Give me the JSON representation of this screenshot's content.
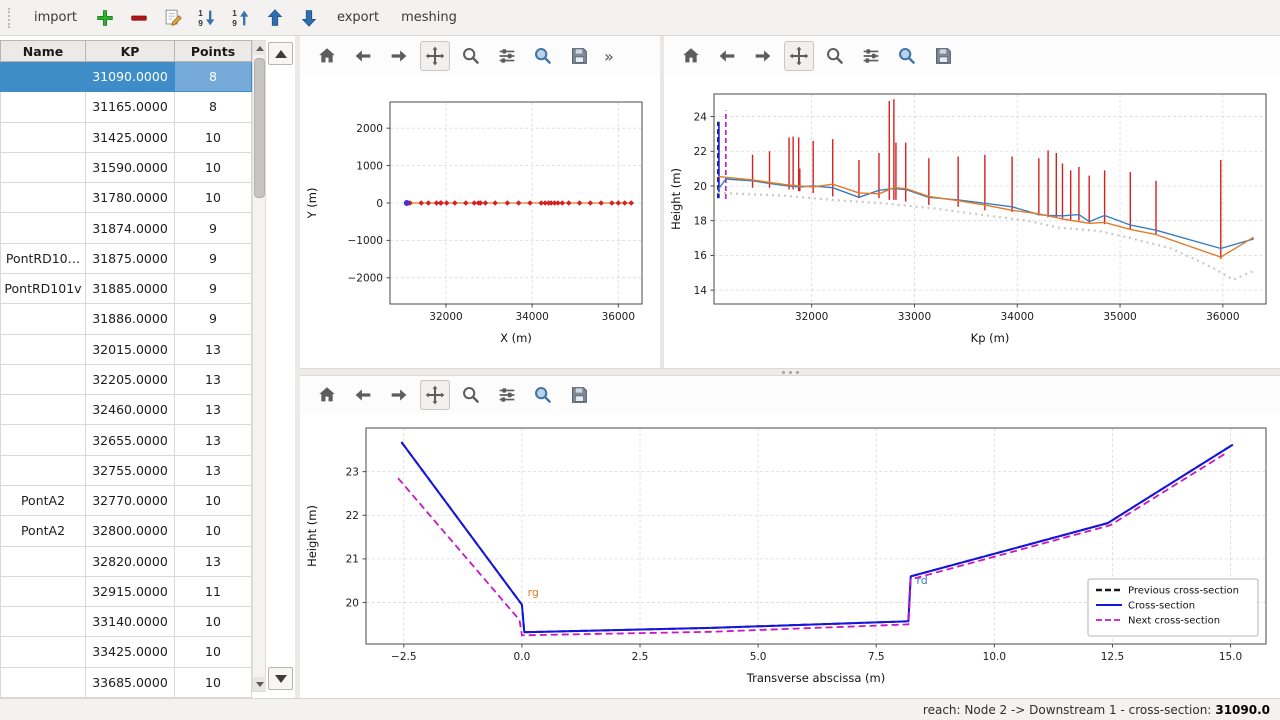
{
  "app": {
    "statusbar_prefix": "reach: Node 2 -> Downstream 1 - cross-section:",
    "statusbar_value": "31090.0"
  },
  "menubar": {
    "items": [
      {
        "type": "grip"
      },
      {
        "type": "menu",
        "label": "import",
        "name": "menu-import"
      },
      {
        "type": "icon",
        "name": "add-icon"
      },
      {
        "type": "icon",
        "name": "remove-icon"
      },
      {
        "type": "icon",
        "name": "edit-icon"
      },
      {
        "type": "icon",
        "name": "sort-descending-icon"
      },
      {
        "type": "icon",
        "name": "sort-ascending-icon"
      },
      {
        "type": "icon",
        "name": "move-up-icon"
      },
      {
        "type": "icon",
        "name": "move-down-icon"
      },
      {
        "type": "menu",
        "label": "export",
        "name": "menu-export"
      },
      {
        "type": "menu",
        "label": "meshing",
        "name": "menu-meshing"
      }
    ]
  },
  "table": {
    "columns": [
      "Name",
      "KP",
      "Points"
    ],
    "selected_row": 0,
    "rows": [
      {
        "name": "",
        "kp": "31090.0000",
        "points": "8"
      },
      {
        "name": "",
        "kp": "31165.0000",
        "points": "8"
      },
      {
        "name": "",
        "kp": "31425.0000",
        "points": "10"
      },
      {
        "name": "",
        "kp": "31590.0000",
        "points": "10"
      },
      {
        "name": "",
        "kp": "31780.0000",
        "points": "10"
      },
      {
        "name": "",
        "kp": "31874.0000",
        "points": "9"
      },
      {
        "name": "PontRD10…",
        "kp": "31875.0000",
        "points": "9"
      },
      {
        "name": "PontRD101v",
        "kp": "31885.0000",
        "points": "9"
      },
      {
        "name": "",
        "kp": "31886.0000",
        "points": "9"
      },
      {
        "name": "",
        "kp": "32015.0000",
        "points": "13"
      },
      {
        "name": "",
        "kp": "32205.0000",
        "points": "13"
      },
      {
        "name": "",
        "kp": "32460.0000",
        "points": "13"
      },
      {
        "name": "",
        "kp": "32655.0000",
        "points": "13"
      },
      {
        "name": "",
        "kp": "32755.0000",
        "points": "13"
      },
      {
        "name": "PontA2",
        "kp": "32770.0000",
        "points": "10"
      },
      {
        "name": "PontA2",
        "kp": "32800.0000",
        "points": "10"
      },
      {
        "name": "",
        "kp": "32820.0000",
        "points": "13"
      },
      {
        "name": "",
        "kp": "32915.0000",
        "points": "11"
      },
      {
        "name": "",
        "kp": "33140.0000",
        "points": "10"
      },
      {
        "name": "",
        "kp": "33425.0000",
        "points": "10"
      },
      {
        "name": "",
        "kp": "33685.0000",
        "points": "10"
      }
    ]
  },
  "toolbars": {
    "icons": [
      "home",
      "back",
      "forward",
      "pan",
      "zoom",
      "subplots",
      "customize",
      "save"
    ],
    "overflow": "»"
  },
  "chart_data": [
    {
      "id": "plan",
      "type": "scatter",
      "title": "",
      "xlabel": "X (m)",
      "ylabel": "Y (m)",
      "xlim": [
        30700,
        36550
      ],
      "ylim": [
        -2700,
        2700
      ],
      "xticks": [
        32000,
        34000,
        36000
      ],
      "xticklabels": [
        "32000",
        "34000",
        "36000"
      ],
      "yticks": [
        -2000,
        -1000,
        0,
        1000,
        2000
      ],
      "yticklabels": [
        "−2000",
        "−1000",
        "0",
        "1000",
        "2000"
      ],
      "grid": true,
      "legend_position": "none",
      "margins": {
        "l": 90,
        "r": 18,
        "t": 26,
        "b": 64
      },
      "series": [
        {
          "name": "river-axis",
          "type": "line",
          "color": "#e07b28",
          "width": 1.2,
          "points": [
            [
              31090,
              0
            ],
            [
              36300,
              0
            ]
          ]
        },
        {
          "name": "cross-sections",
          "type": "markers",
          "shape": "diamond",
          "color": "#d62020",
          "size": 2.8,
          "y": 0,
          "x": [
            31090,
            31165,
            31425,
            31590,
            31780,
            31874,
            31885,
            32015,
            32205,
            32460,
            32655,
            32755,
            32800,
            32915,
            33140,
            33425,
            33685,
            33950,
            34210,
            34300,
            34380,
            34440,
            34520,
            34600,
            34700,
            34850,
            35100,
            35350,
            35600,
            35850,
            36000,
            36150,
            36300
          ]
        },
        {
          "name": "current-section-marker",
          "type": "markers",
          "shape": "circle",
          "color": "#4433cc",
          "size": 3,
          "y": 0,
          "x": [
            31090
          ]
        }
      ]
    },
    {
      "id": "profile",
      "type": "line",
      "title": "",
      "xlabel": "Kp (m)",
      "ylabel": "Height (m)",
      "xlim": [
        31050,
        36420
      ],
      "ylim": [
        13.2,
        25.3
      ],
      "xticks": [
        32000,
        33000,
        34000,
        35000,
        36000
      ],
      "xticklabels": [
        "32000",
        "33000",
        "34000",
        "35000",
        "36000"
      ],
      "yticks": [
        14,
        16,
        18,
        20,
        22,
        24
      ],
      "yticklabels": [
        "14",
        "16",
        "18",
        "20",
        "22",
        "24"
      ],
      "grid": true,
      "legend_position": "none",
      "margins": {
        "l": 50,
        "r": 14,
        "t": 18,
        "b": 64
      },
      "series": [
        {
          "name": "section-extents",
          "type": "vlines",
          "color": "#d62020",
          "width": 1.4,
          "segs": [
            [
              31425,
              19.9,
              21.8
            ],
            [
              31590,
              19.9,
              22.0
            ],
            [
              31780,
              19.8,
              22.8
            ],
            [
              31820,
              19.8,
              22.85
            ],
            [
              31874,
              19.7,
              22.8
            ],
            [
              31885,
              19.7,
              21.0
            ],
            [
              32015,
              19.6,
              22.6
            ],
            [
              32205,
              19.4,
              22.7
            ],
            [
              32460,
              19.3,
              21.5
            ],
            [
              32655,
              19.3,
              21.9
            ],
            [
              32755,
              19.2,
              24.9
            ],
            [
              32800,
              19.2,
              25.0
            ],
            [
              32820,
              19.2,
              22.5
            ],
            [
              32915,
              19.1,
              22.5
            ],
            [
              33140,
              18.9,
              21.6
            ],
            [
              33425,
              18.8,
              21.7
            ],
            [
              33685,
              18.6,
              21.8
            ],
            [
              33950,
              18.5,
              21.7
            ],
            [
              34210,
              18.3,
              21.6
            ],
            [
              34300,
              18.2,
              22.05
            ],
            [
              34380,
              18.2,
              21.9
            ],
            [
              34440,
              18.1,
              21.3
            ],
            [
              34520,
              18.0,
              20.9
            ],
            [
              34600,
              18.0,
              21.1
            ],
            [
              34700,
              17.9,
              20.6
            ],
            [
              34850,
              17.8,
              20.9
            ],
            [
              35100,
              17.5,
              20.8
            ],
            [
              35350,
              17.2,
              20.3
            ],
            [
              35980,
              15.8,
              21.5
            ]
          ]
        },
        {
          "name": "previous-section-marker",
          "type": "vlines",
          "color": "#1a1a1a",
          "dash": "5 3",
          "width": 1.6,
          "segs": [
            [
              31088,
              19.3,
              23.7
            ]
          ]
        },
        {
          "name": "current-section-marker",
          "type": "vlines",
          "color": "#1322dd",
          "width": 1.6,
          "segs": [
            [
              31098,
              19.3,
              23.7
            ]
          ]
        },
        {
          "name": "next-section-marker",
          "type": "vlines",
          "color": "#c717c7",
          "dash": "5 3",
          "width": 1.6,
          "segs": [
            [
              31165,
              19.25,
              24.35
            ]
          ]
        },
        {
          "name": "thalweg-dotted",
          "type": "line",
          "color": "#c9c9c9",
          "dash": "2 4",
          "width": 2.2,
          "points": [
            [
              31090,
              19.6
            ],
            [
              31700,
              19.45
            ],
            [
              32200,
              19.2
            ],
            [
              32700,
              19.0
            ],
            [
              33200,
              18.7
            ],
            [
              33700,
              18.3
            ],
            [
              34100,
              18.0
            ],
            [
              34400,
              17.6
            ],
            [
              34800,
              17.4
            ],
            [
              35100,
              17.0
            ],
            [
              35500,
              16.4
            ],
            [
              35900,
              15.3
            ],
            [
              36100,
              14.6
            ],
            [
              36300,
              15.1
            ]
          ]
        },
        {
          "name": "left-bank",
          "type": "line",
          "color": "#3b7bbf",
          "width": 1.4,
          "points": [
            [
              31090,
              19.8
            ],
            [
              31165,
              20.4
            ],
            [
              31425,
              20.3
            ],
            [
              31590,
              20.15
            ],
            [
              31780,
              20.0
            ],
            [
              31880,
              19.95
            ],
            [
              32015,
              20.0
            ],
            [
              32205,
              19.9
            ],
            [
              32460,
              19.35
            ],
            [
              32655,
              19.75
            ],
            [
              32800,
              19.85
            ],
            [
              32915,
              19.8
            ],
            [
              33140,
              19.35
            ],
            [
              33425,
              19.2
            ],
            [
              33685,
              19.0
            ],
            [
              33950,
              18.8
            ],
            [
              34210,
              18.35
            ],
            [
              34300,
              18.3
            ],
            [
              34440,
              18.28
            ],
            [
              34600,
              18.35
            ],
            [
              34700,
              17.95
            ],
            [
              34850,
              18.3
            ],
            [
              35100,
              17.75
            ],
            [
              35350,
              17.45
            ],
            [
              35980,
              16.4
            ],
            [
              36300,
              16.95
            ]
          ]
        },
        {
          "name": "right-bank",
          "type": "line",
          "color": "#e07b28",
          "width": 1.4,
          "points": [
            [
              31090,
              20.55
            ],
            [
              31165,
              20.5
            ],
            [
              31425,
              20.35
            ],
            [
              31590,
              20.2
            ],
            [
              31780,
              20.05
            ],
            [
              32015,
              19.95
            ],
            [
              32205,
              20.1
            ],
            [
              32460,
              19.6
            ],
            [
              32655,
              19.55
            ],
            [
              32800,
              19.9
            ],
            [
              32915,
              19.85
            ],
            [
              33140,
              19.4
            ],
            [
              33425,
              19.15
            ],
            [
              33685,
              18.9
            ],
            [
              33950,
              18.6
            ],
            [
              34210,
              18.4
            ],
            [
              34440,
              18.1
            ],
            [
              34700,
              17.85
            ],
            [
              34850,
              17.9
            ],
            [
              35100,
              17.5
            ],
            [
              35350,
              17.2
            ],
            [
              35980,
              15.9
            ],
            [
              36300,
              17.05
            ]
          ]
        }
      ]
    },
    {
      "id": "cross-section",
      "type": "line",
      "title": "",
      "xlabel": "Transverse abscissa (m)",
      "ylabel": "Height (m)",
      "xlim": [
        -3.3,
        15.75
      ],
      "ylim": [
        19.05,
        24.0
      ],
      "xticks": [
        -2.5,
        0,
        2.5,
        5,
        7.5,
        10,
        12.5,
        15
      ],
      "xticklabels": [
        "−2.5",
        "0.0",
        "2.5",
        "5.0",
        "7.5",
        "10.0",
        "12.5",
        "15.0"
      ],
      "yticks": [
        20,
        21,
        22,
        23
      ],
      "yticklabels": [
        "20",
        "21",
        "22",
        "23"
      ],
      "grid": true,
      "legend_position": "lower right",
      "margins": {
        "l": 66,
        "r": 14,
        "t": 14,
        "b": 54
      },
      "series": [
        {
          "name": "previous-cross-section",
          "type": "line",
          "color": "#1a1a1a",
          "dash": "7 4",
          "width": 2,
          "points": [
            [
              -2.55,
              23.68
            ],
            [
              0.0,
              19.95
            ],
            [
              0.05,
              19.32
            ],
            [
              4.0,
              19.42
            ],
            [
              8.18,
              19.57
            ],
            [
              8.23,
              20.6
            ],
            [
              12.4,
              21.82
            ],
            [
              15.05,
              23.62
            ]
          ]
        },
        {
          "name": "cross-section",
          "type": "line",
          "color": "#1515e0",
          "width": 2,
          "points": [
            [
              -2.55,
              23.68
            ],
            [
              0.0,
              19.95
            ],
            [
              0.05,
              19.32
            ],
            [
              4.0,
              19.42
            ],
            [
              8.18,
              19.57
            ],
            [
              8.23,
              20.6
            ],
            [
              12.4,
              21.82
            ],
            [
              15.05,
              23.62
            ]
          ]
        },
        {
          "name": "next-cross-section",
          "type": "line",
          "color": "#c717c7",
          "dash": "7 4",
          "width": 1.8,
          "points": [
            [
              -2.62,
              22.85
            ],
            [
              -0.05,
              19.6
            ],
            [
              0.0,
              19.25
            ],
            [
              4.0,
              19.33
            ],
            [
              8.18,
              19.5
            ],
            [
              8.23,
              20.53
            ],
            [
              12.45,
              21.77
            ],
            [
              14.9,
              23.42
            ]
          ]
        }
      ],
      "annotations": [
        {
          "x": 0.12,
          "y": 20.15,
          "text": "rg",
          "color": "#e07b28"
        },
        {
          "x": 8.35,
          "y": 20.42,
          "text": "rd",
          "color": "#3b7bbf"
        }
      ],
      "legend": {
        "entries": [
          {
            "label": "Previous cross-section",
            "color": "#1a1a1a",
            "dash": "6 3",
            "width": 2.4
          },
          {
            "label": "Cross-section",
            "color": "#1515e0",
            "dash": "",
            "width": 2
          },
          {
            "label": "Next cross-section",
            "color": "#c717c7",
            "dash": "6 3",
            "width": 1.8
          }
        ]
      }
    }
  ]
}
